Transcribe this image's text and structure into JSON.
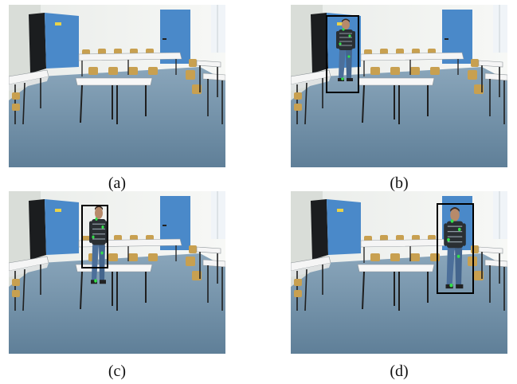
{
  "figure": {
    "panels": [
      {
        "id": "a",
        "caption": "(a)",
        "person": false
      },
      {
        "id": "b",
        "caption": "(b)",
        "person": true
      },
      {
        "id": "c",
        "caption": "(c)",
        "person": true
      },
      {
        "id": "d",
        "caption": "(d)",
        "person": true
      }
    ]
  },
  "colors": {
    "wall": "#eef0ee",
    "floor": "#6f8fa6",
    "door": "#4a89c9",
    "table_top": "#f5f5f5",
    "chair": "#c8a050",
    "bounding_box": "#000000",
    "feature_points": "#32e04a",
    "shirt": "#2a2f33",
    "jeans": "#4c6f9a"
  }
}
